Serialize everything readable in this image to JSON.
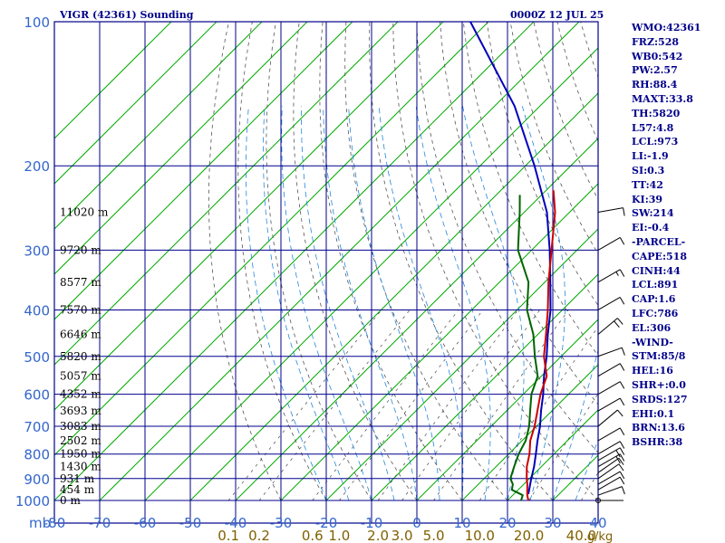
{
  "header": {
    "title": "VIGR (42361) Sounding",
    "time": "0000Z 12 JUL 25"
  },
  "stats": [
    "WMO:42361",
    "FRZ:528",
    "WB0:542",
    "PW:2.57",
    "RH:88.4",
    "MAXT:33.8",
    "TH:5820",
    "L57:4.8",
    "LCL:973",
    "LI:-1.9",
    "SI:0.3",
    "TT:42",
    "KI:39",
    "SW:214",
    "EI:-0.4",
    "-PARCEL-",
    "CAPE:518",
    "CINH:44",
    "LCL:891",
    "CAP:1.6",
    "LFC:786",
    "EL:306",
    "-WIND-",
    "STM:85/8",
    "HEL:16",
    "SHR+:0.0",
    "SRDS:127",
    "EHI:0.1",
    "BRN:13.6",
    "BSHR:38"
  ],
  "colors": {
    "frame": "#00008b",
    "isotherm": "#00aa00",
    "dry_adiabat": "#555555",
    "moist_adiabat": "#2288dd",
    "temperature": "#cc0000",
    "dewpoint": "#006400",
    "parcel": "#0000bb",
    "axis_text": "#3366cc",
    "mixing_text": "#806000"
  },
  "chart_data": {
    "type": "skew-t log-p",
    "xlabel_unit": "mb",
    "mixing_ratio_unit": "g/kg",
    "temperature_ticks": [
      -80,
      -70,
      -60,
      -50,
      -40,
      -30,
      -20,
      -10,
      0,
      10,
      20,
      30,
      40
    ],
    "temperature_tick_labels": [
      "-80",
      "-70",
      "-60",
      "-50",
      "-40",
      "-30",
      "-20",
      "-10",
      "0",
      "10",
      "20",
      "30",
      "40"
    ],
    "pressure_levels": [
      100,
      200,
      300,
      400,
      500,
      600,
      700,
      800,
      900,
      1000
    ],
    "pressure_labels": [
      "100",
      "200",
      "300",
      "400",
      "500",
      "600",
      "700",
      "800",
      "900",
      "1000"
    ],
    "height_labels": [
      {
        "p": 250,
        "label": "11020 m"
      },
      {
        "p": 300,
        "label": "9720 m"
      },
      {
        "p": 350,
        "label": "8577 m"
      },
      {
        "p": 400,
        "label": "7570 m"
      },
      {
        "p": 450,
        "label": "6646 m"
      },
      {
        "p": 500,
        "label": "5820 m"
      },
      {
        "p": 550,
        "label": "5057 m"
      },
      {
        "p": 600,
        "label": "4352 m"
      },
      {
        "p": 650,
        "label": "3693 m"
      },
      {
        "p": 700,
        "label": "3083 m"
      },
      {
        "p": 750,
        "label": "2502 m"
      },
      {
        "p": 800,
        "label": "1950 m"
      },
      {
        "p": 850,
        "label": "1430 m"
      },
      {
        "p": 900,
        "label": "931 m"
      },
      {
        "p": 950,
        "label": "454 m"
      },
      {
        "p": 1000,
        "label": "0 m"
      }
    ],
    "mixing_ratio_labels": [
      "0.1",
      "0.2",
      "0.6",
      "1.0",
      "2.0",
      "3.0",
      "5.0",
      "10.0",
      "20.0",
      "40.0"
    ],
    "mixing_ratio_values": [
      0.1,
      0.2,
      0.6,
      1.0,
      2.0,
      3.0,
      5.0,
      10.0,
      20.0,
      40.0
    ],
    "temperature_profile": [
      {
        "p": 1000,
        "t": 24.6
      },
      {
        "p": 975,
        "t": 23.2
      },
      {
        "p": 950,
        "t": 22.0
      },
      {
        "p": 925,
        "t": 20.8
      },
      {
        "p": 900,
        "t": 19.4
      },
      {
        "p": 850,
        "t": 16.8
      },
      {
        "p": 800,
        "t": 14.6
      },
      {
        "p": 750,
        "t": 11.8
      },
      {
        "p": 700,
        "t": 9.6
      },
      {
        "p": 650,
        "t": 6.8
      },
      {
        "p": 600,
        "t": 3.8
      },
      {
        "p": 550,
        "t": 1.2
      },
      {
        "p": 500,
        "t": -3.8
      },
      {
        "p": 450,
        "t": -8.2
      },
      {
        "p": 400,
        "t": -13.2
      },
      {
        "p": 350,
        "t": -19.2
      },
      {
        "p": 300,
        "t": -25.6
      },
      {
        "p": 250,
        "t": -33.2
      },
      {
        "p": 225,
        "t": -38.4
      }
    ],
    "dewpoint_profile": [
      {
        "p": 1000,
        "t": 23.0
      },
      {
        "p": 975,
        "t": 22.2
      },
      {
        "p": 950,
        "t": 18.6
      },
      {
        "p": 925,
        "t": 17.6
      },
      {
        "p": 900,
        "t": 15.8
      },
      {
        "p": 850,
        "t": 14.0
      },
      {
        "p": 800,
        "t": 12.2
      },
      {
        "p": 750,
        "t": 10.8
      },
      {
        "p": 700,
        "t": 8.4
      },
      {
        "p": 650,
        "t": 5.2
      },
      {
        "p": 600,
        "t": 1.8
      },
      {
        "p": 550,
        "t": -0.8
      },
      {
        "p": 500,
        "t": -5.8
      },
      {
        "p": 450,
        "t": -11.0
      },
      {
        "p": 400,
        "t": -17.8
      },
      {
        "p": 350,
        "t": -23.6
      },
      {
        "p": 300,
        "t": -33.0
      },
      {
        "p": 250,
        "t": -41.0
      },
      {
        "p": 230,
        "t": -44.8
      }
    ],
    "parcel_profile": [
      {
        "p": 970,
        "t": 23.2
      },
      {
        "p": 900,
        "t": 20.4
      },
      {
        "p": 850,
        "t": 18.4
      },
      {
        "p": 800,
        "t": 16.0
      },
      {
        "p": 750,
        "t": 13.4
      },
      {
        "p": 700,
        "t": 10.8
      },
      {
        "p": 650,
        "t": 7.6
      },
      {
        "p": 600,
        "t": 4.4
      },
      {
        "p": 550,
        "t": 0.6
      },
      {
        "p": 500,
        "t": -3.2
      },
      {
        "p": 450,
        "t": -7.8
      },
      {
        "p": 400,
        "t": -12.6
      },
      {
        "p": 350,
        "t": -18.8
      },
      {
        "p": 300,
        "t": -26.0
      },
      {
        "p": 250,
        "t": -35.0
      },
      {
        "p": 200,
        "t": -48.0
      },
      {
        "p": 150,
        "t": -65.6
      },
      {
        "p": 100,
        "t": -94.0
      }
    ],
    "wind_barbs": [
      {
        "p": 1000,
        "dir": 270,
        "kt": 0
      },
      {
        "p": 975,
        "dir": 250,
        "kt": 10
      },
      {
        "p": 950,
        "dir": 240,
        "kt": 10
      },
      {
        "p": 925,
        "dir": 240,
        "kt": 10
      },
      {
        "p": 900,
        "dir": 235,
        "kt": 10
      },
      {
        "p": 875,
        "dir": 235,
        "kt": 10
      },
      {
        "p": 850,
        "dir": 240,
        "kt": 20
      },
      {
        "p": 825,
        "dir": 240,
        "kt": 20
      },
      {
        "p": 800,
        "dir": 240,
        "kt": 10
      },
      {
        "p": 750,
        "dir": 240,
        "kt": 10
      },
      {
        "p": 700,
        "dir": 230,
        "kt": 10
      },
      {
        "p": 650,
        "dir": 240,
        "kt": 10
      },
      {
        "p": 600,
        "dir": 240,
        "kt": 10
      },
      {
        "p": 550,
        "dir": 240,
        "kt": 10
      },
      {
        "p": 500,
        "dir": 250,
        "kt": 10
      },
      {
        "p": 450,
        "dir": 230,
        "kt": 20
      },
      {
        "p": 400,
        "dir": 240,
        "kt": 10
      },
      {
        "p": 350,
        "dir": 240,
        "kt": 15
      },
      {
        "p": 300,
        "dir": 240,
        "kt": 10
      },
      {
        "p": 250,
        "dir": 260,
        "kt": 10
      }
    ]
  }
}
